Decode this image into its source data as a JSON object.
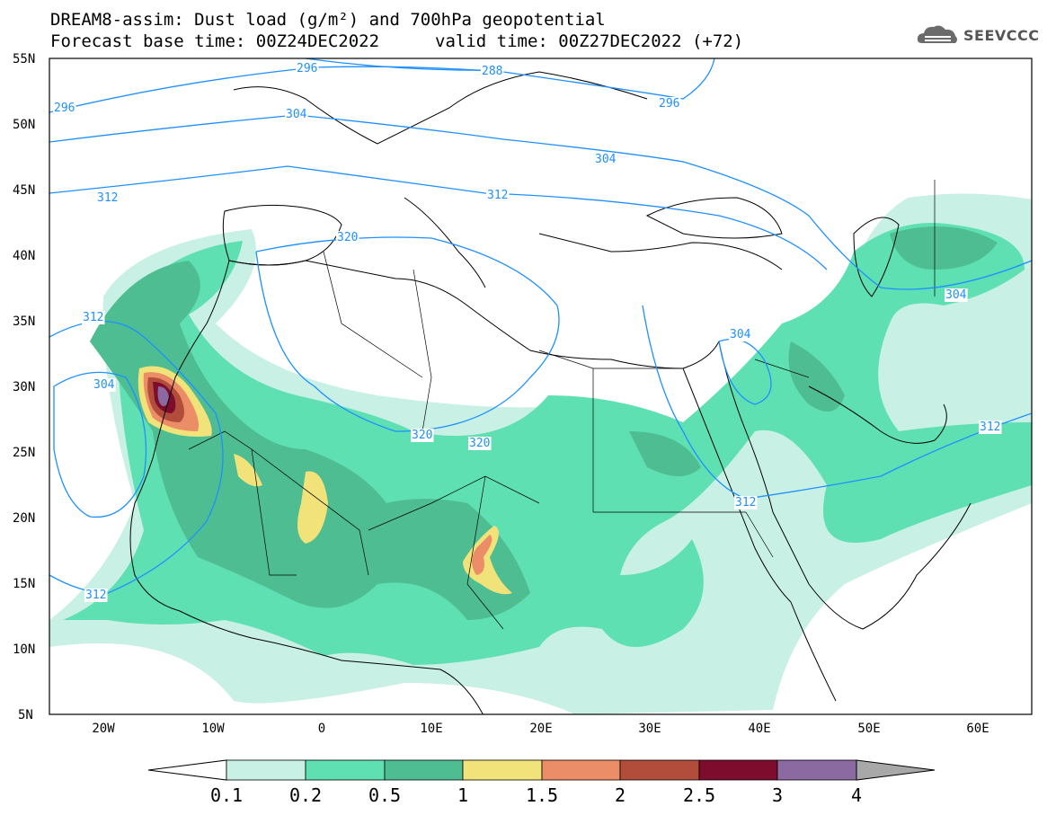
{
  "header": {
    "title": "DREAM8-assim: Dust load (g/m²) and 700hPa geopotential",
    "base_time": "Forecast base time: 00Z24DEC2022",
    "valid_time": "valid time: 00Z27DEC2022 (+72)"
  },
  "logo": {
    "text": "SEEVCCC",
    "icon": "cloud-logo-icon"
  },
  "axes": {
    "lat_ticks": [
      "55N",
      "50N",
      "45N",
      "40N",
      "35N",
      "30N",
      "25N",
      "20N",
      "15N",
      "10N",
      "5N"
    ],
    "lon_ticks": [
      "20W",
      "10W",
      "0",
      "10E",
      "20E",
      "30E",
      "40E",
      "50E",
      "60E"
    ]
  },
  "contours": {
    "line_color": "#1e90ff",
    "labels": [
      "296",
      "288",
      "304",
      "296",
      "296",
      "304",
      "312",
      "312",
      "320",
      "320",
      "320",
      "312",
      "304",
      "304",
      "312",
      "312",
      "312",
      "304"
    ]
  },
  "colorbar": {
    "ticks": [
      "0.1",
      "0.2",
      "0.5",
      "1",
      "1.5",
      "2",
      "2.5",
      "3",
      "4"
    ],
    "colors": [
      "#c9f0e4",
      "#5fe0b2",
      "#4fbd92",
      "#f2e27a",
      "#eb8d66",
      "#b24c3b",
      "#7e0c2c",
      "#8a6aa0"
    ],
    "under_color": "#ffffff",
    "over_color": "#a8a8a8"
  },
  "dust_colors": {
    "c01": "#c9f0e4",
    "c02": "#5fe0b2",
    "c05": "#4fbd92",
    "c10": "#f2e27a",
    "c15": "#eb8d66",
    "c20": "#b24c3b",
    "c25": "#7e0c2c",
    "c30": "#8a6aa0"
  }
}
